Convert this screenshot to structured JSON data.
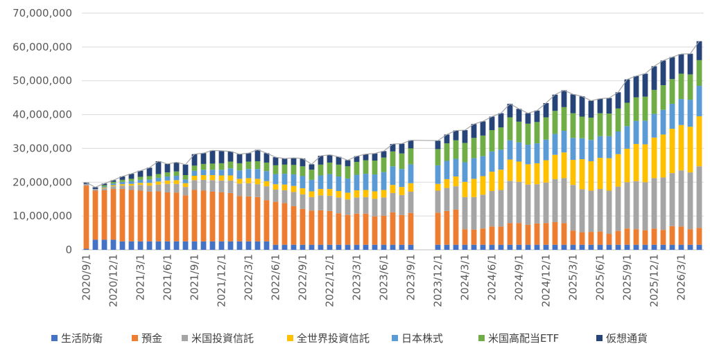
{
  "chart_data": {
    "type": "bar",
    "stacked": true,
    "title": "",
    "xlabel": "",
    "ylabel": "",
    "ylim": [
      0,
      70000000
    ],
    "y_ticks": [
      "0",
      "10,000,000",
      "20,000,000",
      "30,000,000",
      "40,000,000",
      "50,000,000",
      "60,000,000",
      "70,000,000"
    ],
    "grid": "horizontal",
    "legend_position": "bottom",
    "x_tick_labels": [
      "2020/9/1",
      "2020/12/1",
      "2021/3/1",
      "2021/6/1",
      "2021/9/1",
      "2021/12/1",
      "2022/3/1",
      "2022/6/1",
      "2022/9/1",
      "2022/12/1",
      "2023/3/1",
      "2023/6/1",
      "2023/9/1",
      "2023/12/1",
      "2024/3/1",
      "2024/6/1",
      "2024/9/1",
      "2024/12/1",
      "2025/3/1",
      "2025/6/1",
      "2025/9/1",
      "2025/12/1",
      "2026/3/1"
    ],
    "categories": [
      "2020/9/1",
      "2020/10/1",
      "2020/11/1",
      "2020/12/1",
      "2021/1/1",
      "2021/2/1",
      "2021/3/1",
      "2021/4/1",
      "2021/5/1",
      "2021/6/1",
      "2021/7/1",
      "2021/8/1",
      "2021/9/1",
      "2021/10/1",
      "2021/11/1",
      "2021/12/1",
      "2022/1/1",
      "2022/2/1",
      "2022/3/1",
      "2022/4/1",
      "2022/5/1",
      "2022/6/1",
      "2022/7/1",
      "2022/8/1",
      "2022/9/1",
      "2022/10/1",
      "2022/11/1",
      "2022/12/1",
      "2023/1/1",
      "2023/2/1",
      "2023/3/1",
      "2023/4/1",
      "2023/5/1",
      "2023/6/1",
      "2023/7/1",
      "2023/8/1",
      "2023/9/1",
      "2023/10/1",
      "2023/11/1",
      "2023/12/1",
      "2024/1/1",
      "2024/2/1",
      "2024/3/1",
      "2024/4/1",
      "2024/5/1",
      "2024/6/1",
      "2024/7/1",
      "2024/8/1",
      "2024/9/1",
      "2024/10/1",
      "2024/11/1",
      "2024/12/1",
      "2025/1/1",
      "2025/2/1",
      "2025/3/1",
      "2025/4/1",
      "2025/5/1",
      "2025/6/1",
      "2025/7/1",
      "2025/8/1",
      "2025/9/1",
      "2025/10/1",
      "2025/11/1",
      "2025/12/1",
      "2026/1/1",
      "2026/2/1",
      "2026/3/1",
      "2026/4/1",
      "2026/5/1"
    ],
    "series": [
      {
        "name": "生活防衛",
        "color": "#4472C4",
        "values": [
          300000,
          3000000,
          3000000,
          3000000,
          2500000,
          2500000,
          2500000,
          2500000,
          2500000,
          2500000,
          2500000,
          2500000,
          2500000,
          2500000,
          2500000,
          2500000,
          2500000,
          2500000,
          2500000,
          2500000,
          2500000,
          1500000,
          1500000,
          1500000,
          1500000,
          1500000,
          1500000,
          1500000,
          1500000,
          1500000,
          1500000,
          1500000,
          1500000,
          1500000,
          1500000,
          1500000,
          1500000,
          null,
          null,
          1500000,
          1500000,
          1500000,
          1500000,
          1500000,
          1500000,
          1500000,
          1500000,
          1500000,
          1500000,
          1500000,
          1500000,
          1500000,
          1500000,
          1500000,
          1500000,
          1500000,
          1500000,
          1500000,
          1500000,
          1500000,
          1500000,
          1500000,
          1500000,
          1500000,
          1500000,
          1500000,
          1500000,
          1500000,
          1500000
        ]
      },
      {
        "name": "預金",
        "color": "#ED7D31",
        "values": [
          18700000,
          14500000,
          14600000,
          15000000,
          15500000,
          15200000,
          15000000,
          14700000,
          14800000,
          14500000,
          14400000,
          13600000,
          15200000,
          15000000,
          14700000,
          14500000,
          14300000,
          13400000,
          13300000,
          13100000,
          12200000,
          12700000,
          12300000,
          11400000,
          10600000,
          10100000,
          10200000,
          10000000,
          9300000,
          8800000,
          9200000,
          9200000,
          8400000,
          8600000,
          9600000,
          8800000,
          9400000,
          null,
          null,
          9500000,
          10000000,
          10400000,
          4600000,
          4500000,
          4800000,
          5400000,
          5400000,
          6400000,
          6400000,
          5900000,
          6300000,
          6400000,
          6700000,
          6400000,
          4200000,
          3700000,
          3800000,
          3900000,
          3200000,
          4100000,
          4800000,
          4600000,
          4300000,
          4800000,
          4400000,
          5500000,
          5400000,
          4600000,
          5000000
        ]
      },
      {
        "name": "米国投資信託",
        "color": "#A5A5A5",
        "values": [
          500000,
          500000,
          600000,
          800000,
          1000000,
          1300000,
          1700000,
          1800000,
          2000000,
          2500000,
          2600000,
          2500000,
          2900000,
          3200000,
          3400000,
          3500000,
          3700000,
          3700000,
          3900000,
          3800000,
          4100000,
          3600000,
          3800000,
          4200000,
          4300000,
          4000000,
          4400000,
          4500000,
          4700000,
          4600000,
          4800000,
          4900000,
          5200000,
          5400000,
          5700000,
          5900000,
          6300000,
          null,
          null,
          6500000,
          6800000,
          6900000,
          9500000,
          9600000,
          10000000,
          10500000,
          10800000,
          12500000,
          12200000,
          11900000,
          11600000,
          12000000,
          12700000,
          13300000,
          13500000,
          12700000,
          12200000,
          12600000,
          12800000,
          13100000,
          13700000,
          14200000,
          14200000,
          14900000,
          15500000,
          15700000,
          16600000,
          16800000,
          18200000
        ]
      },
      {
        "name": "全世界投資信託",
        "color": "#FFC000",
        "values": [
          0,
          0,
          200000,
          300000,
          400000,
          500000,
          600000,
          800000,
          900000,
          1000000,
          1100000,
          1100000,
          1300000,
          1400000,
          1500000,
          1500000,
          1500000,
          1400000,
          1500000,
          1600000,
          1500000,
          1600000,
          1700000,
          1800000,
          1800000,
          1700000,
          1900000,
          2000000,
          1900000,
          2000000,
          2100000,
          2100000,
          2200000,
          2200000,
          2400000,
          2400000,
          2500000,
          null,
          null,
          2000000,
          2600000,
          2900000,
          4500000,
          5400000,
          5500000,
          5700000,
          6000000,
          6300000,
          6000000,
          6000000,
          6200000,
          6600000,
          7200000,
          7600000,
          7400000,
          8900000,
          8700000,
          9200000,
          9600000,
          9600000,
          9900000,
          11000000,
          11200000,
          12000000,
          12700000,
          13100000,
          13400000,
          13500000,
          14800000
        ]
      },
      {
        "name": "日本株式",
        "color": "#5B9BD5",
        "values": [
          0,
          0,
          300000,
          500000,
          700000,
          800000,
          900000,
          1000000,
          1100000,
          1200000,
          1300000,
          1100000,
          1500000,
          1600000,
          1600000,
          1700000,
          2100000,
          2500000,
          2700000,
          2900000,
          3000000,
          3000000,
          3200000,
          3400000,
          3600000,
          3400000,
          4000000,
          4400000,
          4300000,
          4200000,
          4600000,
          4800000,
          5000000,
          5300000,
          5500000,
          5300000,
          5600000,
          null,
          null,
          5500000,
          5400000,
          5200000,
          5800000,
          6100000,
          5900000,
          6000000,
          5900000,
          5700000,
          5700000,
          5800000,
          5900000,
          6100000,
          6200000,
          6400000,
          6500000,
          6200000,
          6300000,
          6400000,
          6500000,
          6700000,
          6700000,
          6800000,
          7000000,
          7000000,
          7300000,
          7400000,
          7700000,
          8000000,
          9000000
        ]
      },
      {
        "name": "米国高配当ETF",
        "color": "#70AD47",
        "values": [
          0,
          0,
          400000,
          500000,
          600000,
          700000,
          900000,
          1000000,
          1100000,
          1200000,
          1300000,
          1300000,
          1500000,
          1700000,
          1800000,
          1900000,
          2000000,
          2100000,
          2200000,
          2300000,
          2500000,
          2600000,
          2700000,
          2800000,
          2900000,
          3000000,
          3200000,
          3400000,
          3500000,
          3600000,
          3800000,
          4000000,
          4100000,
          4300000,
          4400000,
          4600000,
          4700000,
          null,
          null,
          4800000,
          5200000,
          5500000,
          5700000,
          6000000,
          6100000,
          6300000,
          6600000,
          6800000,
          6100000,
          6200000,
          6300000,
          6600000,
          6800000,
          7000000,
          7300000,
          6400000,
          6600000,
          6800000,
          6700000,
          6800000,
          6900000,
          7000000,
          7100000,
          7100000,
          7300000,
          7300000,
          7500000,
          7500000,
          7600000
        ]
      },
      {
        "name": "仮想通貨",
        "color": "#264478",
        "values": [
          400000,
          500000,
          500000,
          500000,
          1000000,
          1500000,
          1800000,
          2500000,
          3800000,
          2500000,
          2700000,
          3100000,
          3400000,
          3200000,
          3900000,
          3700000,
          3000000,
          2700000,
          2500000,
          3400000,
          2800000,
          2400000,
          1800000,
          2100000,
          2300000,
          1600000,
          2600000,
          2300000,
          2300000,
          1800000,
          1700000,
          1800000,
          2100000,
          1900000,
          2200000,
          2900000,
          2400000,
          null,
          null,
          2500000,
          2600000,
          2900000,
          3800000,
          4100000,
          4200000,
          4000000,
          4200000,
          4000000,
          3800000,
          3100000,
          3400000,
          4200000,
          4800000,
          5000000,
          5600000,
          6000000,
          5000000,
          4300000,
          4600000,
          4800000,
          6900000,
          6300000,
          6800000,
          7000000,
          7300000,
          6500000,
          5800000,
          6100000,
          5600000
        ]
      }
    ]
  },
  "colors": {
    "grid": "#D9D9D9",
    "axis": "#BFBFBF",
    "total_line": "#A6A6A6"
  }
}
